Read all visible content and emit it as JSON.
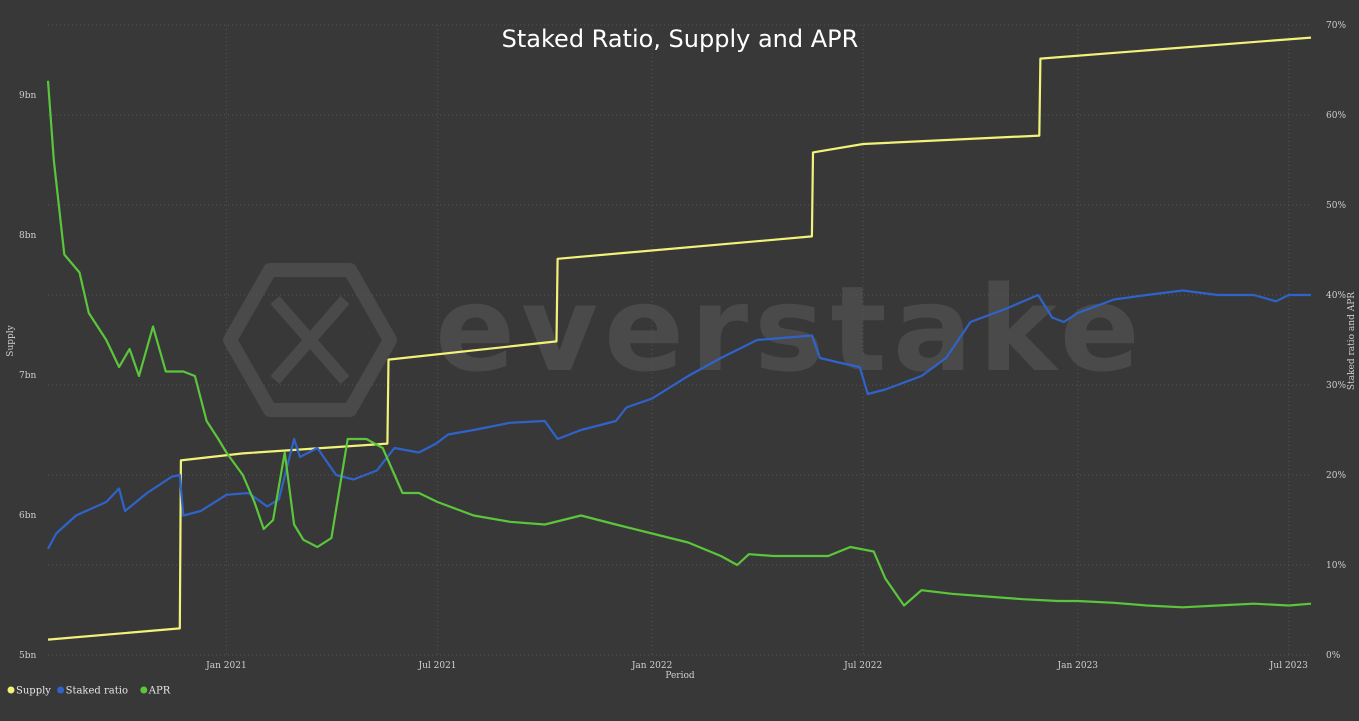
{
  "chart_data": {
    "type": "line",
    "title": "Staked Ratio, Supply and APR",
    "xlabel": "Period",
    "ylabel_left": "Supply",
    "ylabel_right": "Staked ratio and APR",
    "watermark": "everstake",
    "x_range": [
      "2020-08-01",
      "2023-07-20"
    ],
    "x_ticks": [
      {
        "label": "Jan 2021",
        "date": "2021-01-01"
      },
      {
        "label": "Jul 2021",
        "date": "2021-07-01"
      },
      {
        "label": "Jan 2022",
        "date": "2022-01-01"
      },
      {
        "label": "Jul 2022",
        "date": "2022-07-01"
      },
      {
        "label": "Jan 2023",
        "date": "2023-01-01"
      },
      {
        "label": "Jul 2023",
        "date": "2023-07-01"
      }
    ],
    "y_left": {
      "min": 5000000000,
      "max": 9500000000,
      "ticks": [
        {
          "label": "5bn",
          "value": 5000000000
        },
        {
          "label": "6bn",
          "value": 6000000000
        },
        {
          "label": "7bn",
          "value": 7000000000
        },
        {
          "label": "8bn",
          "value": 8000000000
        },
        {
          "label": "9bn",
          "value": 9000000000
        }
      ]
    },
    "y_right": {
      "min": 0,
      "max": 70,
      "ticks": [
        {
          "label": "0%",
          "value": 0
        },
        {
          "label": "10%",
          "value": 10
        },
        {
          "label": "20%",
          "value": 20
        },
        {
          "label": "30%",
          "value": 30
        },
        {
          "label": "40%",
          "value": 40
        },
        {
          "label": "50%",
          "value": 50
        },
        {
          "label": "60%",
          "value": 60
        },
        {
          "label": "70%",
          "value": 70
        }
      ]
    },
    "grid": true,
    "legend": {
      "placement": "bottom-left"
    },
    "series": [
      {
        "name": "Supply",
        "axis": "left",
        "color": "#f2f27a",
        "points": [
          [
            "2020-08-01",
            5110000000.0
          ],
          [
            "2020-11-22",
            5190000000.0
          ],
          [
            "2020-11-23",
            6390000000.0
          ],
          [
            "2021-01-15",
            6440000000.0
          ],
          [
            "2021-05-19",
            6510000000.0
          ],
          [
            "2021-05-20",
            7110000000.0
          ],
          [
            "2021-10-11",
            7240000000.0
          ],
          [
            "2021-10-12",
            7830000000.0
          ],
          [
            "2022-05-18",
            7990000000.0
          ],
          [
            "2022-05-19",
            8590000000.0
          ],
          [
            "2022-07-01",
            8650000000.0
          ],
          [
            "2022-11-29",
            8710000000.0
          ],
          [
            "2022-11-30",
            9260000000.0
          ],
          [
            "2023-07-20",
            9410000000.0
          ]
        ]
      },
      {
        "name": "Staked ratio",
        "axis": "right",
        "color": "#2f63c9",
        "points": [
          [
            "2020-08-01",
            11.8
          ],
          [
            "2020-08-08",
            13.5
          ],
          [
            "2020-08-25",
            15.5
          ],
          [
            "2020-09-20",
            17.0
          ],
          [
            "2020-10-01",
            18.5
          ],
          [
            "2020-10-06",
            16.0
          ],
          [
            "2020-10-25",
            18.0
          ],
          [
            "2020-11-15",
            19.8
          ],
          [
            "2020-11-22",
            20.0
          ],
          [
            "2020-11-25",
            15.5
          ],
          [
            "2020-12-10",
            16.0
          ],
          [
            "2021-01-01",
            17.8
          ],
          [
            "2021-01-20",
            18.0
          ],
          [
            "2021-02-05",
            16.5
          ],
          [
            "2021-02-15",
            17.3
          ],
          [
            "2021-02-28",
            24.0
          ],
          [
            "2021-03-05",
            22.0
          ],
          [
            "2021-03-20",
            23.0
          ],
          [
            "2021-04-05",
            20.0
          ],
          [
            "2021-04-20",
            19.5
          ],
          [
            "2021-05-10",
            20.5
          ],
          [
            "2021-05-25",
            23.0
          ],
          [
            "2021-06-15",
            22.5
          ],
          [
            "2021-06-30",
            23.5
          ],
          [
            "2021-07-10",
            24.5
          ],
          [
            "2021-08-01",
            25.0
          ],
          [
            "2021-09-01",
            25.8
          ],
          [
            "2021-10-01",
            26.0
          ],
          [
            "2021-10-12",
            24.0
          ],
          [
            "2021-11-01",
            25.0
          ],
          [
            "2021-12-01",
            26.0
          ],
          [
            "2021-12-10",
            27.5
          ],
          [
            "2022-01-01",
            28.5
          ],
          [
            "2022-02-01",
            31.0
          ],
          [
            "2022-03-01",
            33.0
          ],
          [
            "2022-04-01",
            35.0
          ],
          [
            "2022-05-18",
            35.5
          ],
          [
            "2022-05-25",
            33.0
          ],
          [
            "2022-06-10",
            32.5
          ],
          [
            "2022-06-28",
            32.0
          ],
          [
            "2022-07-05",
            29.0
          ],
          [
            "2022-07-20",
            29.5
          ],
          [
            "2022-08-20",
            31.0
          ],
          [
            "2022-09-10",
            33.0
          ],
          [
            "2022-10-01",
            37.0
          ],
          [
            "2022-11-01",
            38.5
          ],
          [
            "2022-11-28",
            40.0
          ],
          [
            "2022-12-10",
            37.5
          ],
          [
            "2022-12-20",
            37.0
          ],
          [
            "2023-01-01",
            38.0
          ],
          [
            "2023-02-01",
            39.5
          ],
          [
            "2023-03-01",
            40.0
          ],
          [
            "2023-04-01",
            40.5
          ],
          [
            "2023-05-01",
            40.0
          ],
          [
            "2023-06-01",
            40.0
          ],
          [
            "2023-06-20",
            39.3
          ],
          [
            "2023-07-01",
            40.0
          ],
          [
            "2023-07-20",
            40.0
          ]
        ]
      },
      {
        "name": "APR",
        "axis": "right",
        "color": "#5bc63b",
        "points": [
          [
            "2020-08-01",
            63.8
          ],
          [
            "2020-08-06",
            55.0
          ],
          [
            "2020-08-15",
            44.5
          ],
          [
            "2020-08-28",
            42.5
          ],
          [
            "2020-09-05",
            38.0
          ],
          [
            "2020-09-20",
            35.0
          ],
          [
            "2020-10-01",
            32.0
          ],
          [
            "2020-10-10",
            34.0
          ],
          [
            "2020-10-18",
            31.0
          ],
          [
            "2020-10-30",
            36.5
          ],
          [
            "2020-11-10",
            31.5
          ],
          [
            "2020-11-25",
            31.5
          ],
          [
            "2020-12-05",
            31.0
          ],
          [
            "2020-12-15",
            26.0
          ],
          [
            "2020-12-25",
            24.0
          ],
          [
            "2021-01-01",
            22.5
          ],
          [
            "2021-01-15",
            20.0
          ],
          [
            "2021-01-25",
            17.0
          ],
          [
            "2021-02-02",
            14.0
          ],
          [
            "2021-02-10",
            15.0
          ],
          [
            "2021-02-20",
            22.5
          ],
          [
            "2021-02-28",
            14.5
          ],
          [
            "2021-03-08",
            12.8
          ],
          [
            "2021-03-20",
            12.0
          ],
          [
            "2021-04-01",
            13.0
          ],
          [
            "2021-04-15",
            24.0
          ],
          [
            "2021-05-01",
            24.0
          ],
          [
            "2021-05-15",
            23.0
          ],
          [
            "2021-06-01",
            18.0
          ],
          [
            "2021-06-15",
            18.0
          ],
          [
            "2021-07-01",
            17.0
          ],
          [
            "2021-08-01",
            15.5
          ],
          [
            "2021-09-01",
            14.8
          ],
          [
            "2021-10-01",
            14.5
          ],
          [
            "2021-11-01",
            15.5
          ],
          [
            "2021-12-01",
            14.5
          ],
          [
            "2022-01-01",
            13.5
          ],
          [
            "2022-02-01",
            12.5
          ],
          [
            "2022-03-01",
            11.0
          ],
          [
            "2022-03-15",
            10.0
          ],
          [
            "2022-03-25",
            11.2
          ],
          [
            "2022-04-15",
            11.0
          ],
          [
            "2022-05-15",
            11.0
          ],
          [
            "2022-06-01",
            11.0
          ],
          [
            "2022-06-20",
            12.0
          ],
          [
            "2022-07-10",
            11.5
          ],
          [
            "2022-07-20",
            8.5
          ],
          [
            "2022-08-05",
            5.5
          ],
          [
            "2022-08-20",
            7.2
          ],
          [
            "2022-09-15",
            6.8
          ],
          [
            "2022-10-15",
            6.5
          ],
          [
            "2022-11-15",
            6.2
          ],
          [
            "2022-12-15",
            6.0
          ],
          [
            "2023-01-01",
            6.0
          ],
          [
            "2023-02-01",
            5.8
          ],
          [
            "2023-03-01",
            5.5
          ],
          [
            "2023-04-01",
            5.3
          ],
          [
            "2023-05-01",
            5.5
          ],
          [
            "2023-06-01",
            5.7
          ],
          [
            "2023-07-01",
            5.5
          ],
          [
            "2023-07-20",
            5.7
          ]
        ]
      }
    ]
  }
}
